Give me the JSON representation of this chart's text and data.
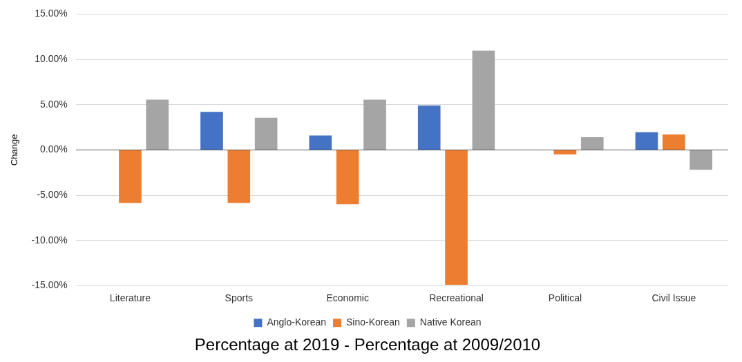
{
  "chart_data": {
    "type": "bar",
    "title": "Percentage at 2019 - Percentage at 2009/2010",
    "ylabel": "Change",
    "categories": [
      "Literature",
      "Sports",
      "Economic",
      "Recreational",
      "Political",
      "Civil Issue"
    ],
    "series": [
      {
        "name": "Anglo-Korean",
        "color": "#4472c4",
        "values": [
          0,
          4.2,
          1.6,
          4.9,
          0,
          1.95
        ]
      },
      {
        "name": "Sino-Korean",
        "color": "#ed7d31",
        "values": [
          -5.85,
          -5.85,
          -6.0,
          -14.9,
          -0.5,
          1.7
        ]
      },
      {
        "name": "Native Korean",
        "color": "#a5a5a5",
        "values": [
          5.55,
          3.55,
          5.55,
          10.95,
          1.4,
          -2.2
        ]
      }
    ],
    "ylim": [
      -15,
      15
    ],
    "yticks": [
      {
        "value": -15,
        "label": "-15.00%"
      },
      {
        "value": -10,
        "label": "-10.00%"
      },
      {
        "value": -5,
        "label": "-5.00%"
      },
      {
        "value": 0,
        "label": "0.00%"
      },
      {
        "value": 5,
        "label": "5.00%"
      },
      {
        "value": 10,
        "label": "10.00%"
      },
      {
        "value": 15,
        "label": "15.00%"
      }
    ],
    "grid": "y",
    "legend": "bottom"
  }
}
